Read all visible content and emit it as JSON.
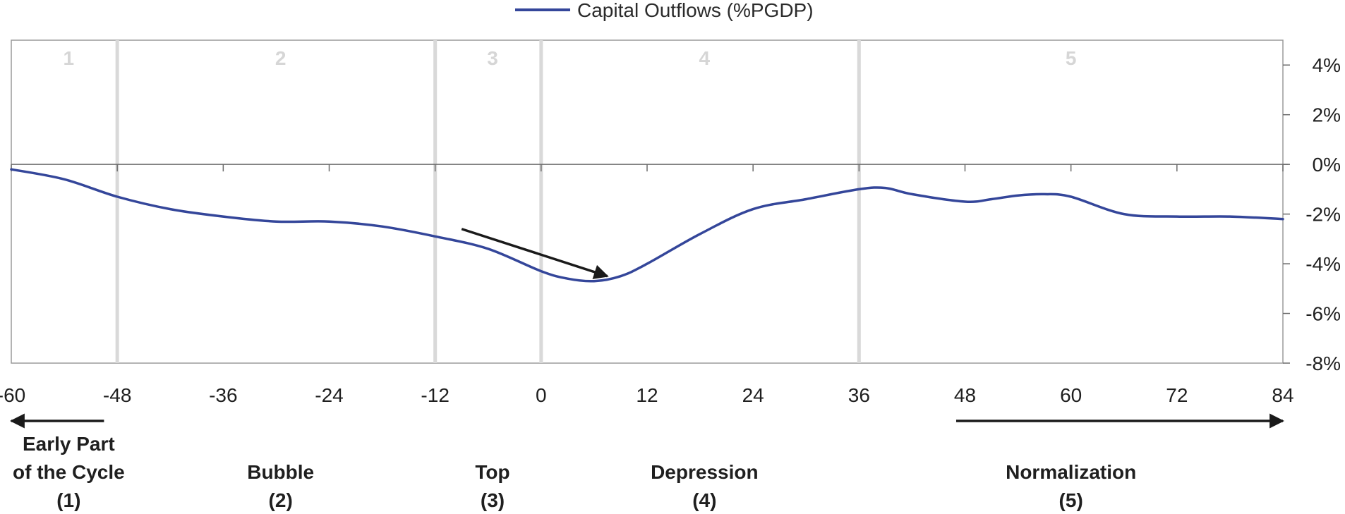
{
  "chart_data": {
    "type": "line",
    "legend": {
      "label": "Capital Outflows (%PGDP)",
      "placement": "top-center"
    },
    "x": [
      -60,
      -54,
      -48,
      -42,
      -36,
      -30,
      -24,
      -18,
      -12,
      -6,
      0,
      3,
      6,
      9,
      12,
      18,
      24,
      30,
      36,
      39,
      42,
      48,
      51,
      54,
      57,
      60,
      66,
      72,
      78,
      84
    ],
    "series": [
      {
        "name": "Capital Outflows (%PGDP)",
        "color": "#34469a",
        "values": [
          -0.2,
          -0.6,
          -1.3,
          -1.8,
          -2.1,
          -2.3,
          -2.3,
          -2.5,
          -2.9,
          -3.4,
          -4.3,
          -4.6,
          -4.7,
          -4.5,
          -4.0,
          -2.8,
          -1.8,
          -1.4,
          -1.0,
          -0.95,
          -1.2,
          -1.5,
          -1.4,
          -1.25,
          -1.2,
          -1.3,
          -2.0,
          -2.1,
          -2.1,
          -2.2
        ]
      }
    ],
    "xlim": [
      -60,
      84
    ],
    "ylim": [
      -8,
      5
    ],
    "y_axis_position": "right",
    "x_ticks": [
      -60,
      -48,
      -36,
      -24,
      -12,
      0,
      12,
      24,
      36,
      48,
      60,
      72,
      84
    ],
    "x_tick_labels": [
      "-60",
      "-48",
      "-36",
      "-24",
      "-12",
      "0",
      "12",
      "24",
      "36",
      "48",
      "60",
      "72",
      "84"
    ],
    "y_ticks": [
      4,
      2,
      0,
      -2,
      -4,
      -6,
      -8
    ],
    "y_tick_labels": [
      "4%",
      "2%",
      "0%",
      "-2%",
      "-4%",
      "-6%",
      "-8%"
    ],
    "phase_boundaries": [
      -48,
      -12,
      0,
      36
    ],
    "phase_dividers_color": "#d9d9d9",
    "phases": [
      {
        "number": "1",
        "x": -53.5,
        "label_lines": [
          "Early Part",
          "of the Cycle",
          "(1)"
        ]
      },
      {
        "number": "2",
        "x": -29.5,
        "label_lines": [
          "Bubble",
          "(2)"
        ]
      },
      {
        "number": "3",
        "x": -5.5,
        "label_lines": [
          "Top",
          "(3)"
        ]
      },
      {
        "number": "4",
        "x": 18.5,
        "label_lines": [
          "Depression",
          "(4)"
        ]
      },
      {
        "number": "5",
        "x": 60,
        "label_lines": [
          "Normalization",
          "(5)"
        ]
      }
    ],
    "annotation_arrow": {
      "from": [
        -9,
        -2.6
      ],
      "to": [
        7.5,
        -4.5
      ],
      "color": "#1a1a1a"
    },
    "bottom_arrows": [
      {
        "direction": "left",
        "from": -49.5,
        "to": -60
      },
      {
        "direction": "right",
        "from": 47,
        "to": 84
      }
    ],
    "grid": false
  }
}
